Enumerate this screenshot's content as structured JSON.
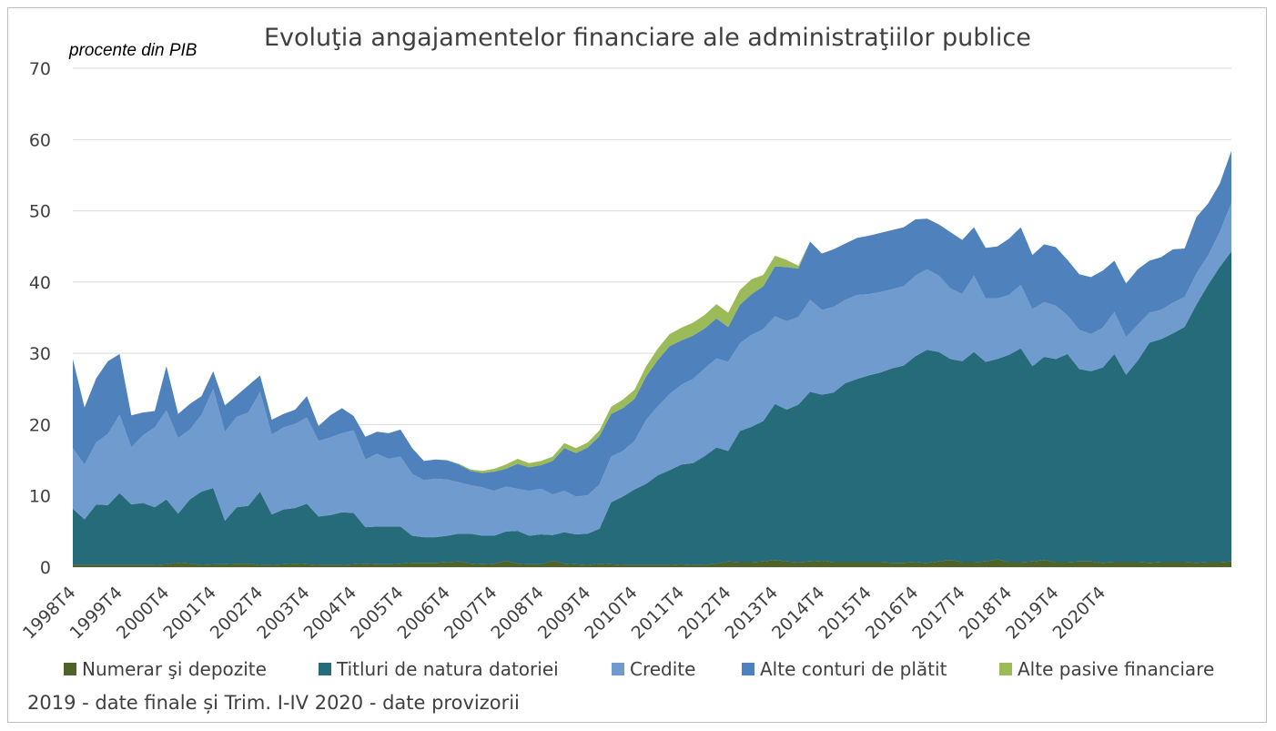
{
  "title": "Evoluţia angajamentelor financiare ale administraţiilor publice",
  "unit_label": "procente din PIB",
  "note": "2019 - date finale și Trim. I-IV 2020 - date provizorii",
  "colors": {
    "numerar": "#4f6228",
    "titluri": "#256b7a",
    "credite": "#6f9bcf",
    "alte_conturi": "#4f81bd",
    "alte_pasive": "#9bbb59",
    "grid": "#d9d9d9",
    "text": "#404040"
  },
  "chart_data": {
    "type": "area",
    "stacked": true,
    "title": "Evoluţia angajamentelor financiare ale administraţiilor publice",
    "ylabel": "procente din PIB",
    "ylim": [
      0,
      70
    ],
    "yticks": [
      0,
      10,
      20,
      30,
      40,
      50,
      60,
      70
    ],
    "grid": true,
    "legend_position": "bottom",
    "x_start": "1998T4",
    "x_end": "2020T4",
    "x_tick_labels": [
      "1998T4",
      "1999T4",
      "2000T4",
      "2001T4",
      "2002T4",
      "2003T4",
      "2004T4",
      "2005T4",
      "2006T4",
      "2007T4",
      "2008T4",
      "2009T4",
      "2010T4",
      "2011T4",
      "2012T4",
      "2013T4",
      "2014T4",
      "2015T4",
      "2016T4",
      "2017T4",
      "2018T4",
      "2019T4",
      "2020T4"
    ],
    "series": [
      {
        "name": "Numerar şi depozite",
        "values": [
          0.3,
          0.3,
          0.3,
          0.3,
          0.3,
          0.3,
          0.3,
          0.3,
          0.4,
          0.6,
          0.5,
          0.3,
          0.4,
          0.4,
          0.5,
          0.5,
          0.3,
          0.3,
          0.4,
          0.5,
          0.4,
          0.3,
          0.3,
          0.3,
          0.4,
          0.5,
          0.4,
          0.4,
          0.5,
          0.6,
          0.6,
          0.6,
          0.7,
          0.8,
          0.5,
          0.4,
          0.5,
          0.9,
          0.5,
          0.4,
          0.4,
          0.9,
          0.5,
          0.4,
          0.3,
          0.5,
          0.4,
          0.3,
          0.3,
          0.3,
          0.3,
          0.3,
          0.4,
          0.3,
          0.3,
          0.5,
          0.8,
          0.7,
          0.7,
          0.8,
          1.0,
          0.8,
          0.7,
          0.8,
          0.9,
          0.7,
          0.7,
          0.7,
          0.7,
          0.7,
          0.6,
          0.6,
          0.7,
          0.6,
          0.8,
          1.0,
          0.7,
          0.7,
          0.8,
          1.1,
          0.7,
          0.7,
          0.8,
          1.0,
          0.7,
          0.7,
          0.8,
          0.8,
          0.6,
          0.7,
          0.7,
          0.7,
          0.6,
          0.7,
          0.7,
          0.7,
          0.6,
          0.7,
          0.7,
          0.8
        ]
      },
      {
        "name": "Titluri de natura datoriei",
        "values": [
          7.9,
          6.4,
          8.5,
          8.4,
          10.1,
          8.5,
          8.7,
          8.1,
          9.1,
          6.9,
          9.0,
          10.3,
          10.7,
          6.1,
          7.9,
          8.1,
          10.3,
          7.1,
          7.7,
          7.8,
          8.5,
          6.8,
          7.0,
          7.4,
          7.2,
          5.1,
          5.3,
          5.3,
          5.2,
          3.8,
          3.6,
          3.6,
          3.7,
          3.9,
          4.2,
          4.0,
          3.9,
          4.1,
          4.6,
          4.0,
          4.2,
          3.6,
          4.4,
          4.2,
          4.4,
          4.9,
          8.7,
          9.6,
          10.6,
          11.4,
          12.6,
          13.3,
          14.0,
          14.3,
          15.3,
          16.3,
          15.5,
          18.4,
          19.0,
          19.7,
          21.9,
          21.3,
          22.1,
          23.8,
          23.3,
          23.8,
          25.1,
          25.7,
          26.2,
          26.6,
          27.3,
          27.7,
          28.9,
          29.9,
          29.4,
          28.2,
          28.2,
          29.5,
          28.0,
          28.1,
          29.1,
          30.0,
          27.4,
          28.5,
          28.5,
          29.2,
          27.0,
          26.7,
          27.4,
          29.2,
          26.3,
          28.3,
          30.9,
          31.3,
          32.1,
          33.0,
          36.2,
          38.9,
          41.4,
          43.5
        ]
      },
      {
        "name": "Credite",
        "values": [
          8.5,
          7.7,
          8.7,
          10.0,
          11.0,
          8.0,
          9.5,
          11.2,
          12.5,
          10.6,
          9.8,
          10.8,
          13.9,
          12.5,
          12.7,
          13.1,
          14.0,
          11.2,
          11.5,
          11.8,
          12.1,
          10.6,
          10.9,
          11.1,
          11.6,
          9.5,
          10.2,
          9.5,
          9.8,
          8.7,
          8.0,
          8.2,
          7.9,
          7.2,
          6.8,
          6.8,
          6.3,
          6.3,
          5.9,
          6.3,
          6.4,
          5.7,
          5.8,
          5.3,
          5.4,
          6.2,
          6.4,
          6.4,
          6.8,
          9.0,
          9.7,
          10.7,
          11.2,
          11.8,
          12.3,
          12.5,
          12.5,
          12.3,
          12.9,
          12.9,
          12.3,
          12.4,
          12.3,
          12.9,
          11.9,
          12.0,
          11.7,
          11.8,
          11.4,
          11.3,
          11.1,
          11.1,
          11.3,
          11.3,
          10.7,
          9.9,
          9.4,
          10.7,
          8.9,
          8.5,
          8.4,
          8.9,
          8.0,
          7.7,
          7.5,
          5.4,
          5.5,
          5.2,
          5.6,
          5.9,
          5.3,
          5.0,
          4.2,
          4.1,
          4.3,
          4.2,
          4.4,
          4.1,
          4.9,
          6.8
        ]
      },
      {
        "name": "Alte conturi de plătit",
        "values": [
          12.5,
          8.0,
          9.0,
          10.2,
          8.5,
          4.5,
          3.2,
          2.3,
          6.2,
          3.4,
          3.6,
          2.6,
          2.5,
          3.7,
          3.0,
          3.8,
          2.3,
          2.1,
          1.9,
          2.0,
          3.0,
          2.1,
          3.1,
          3.5,
          2.0,
          3.2,
          3.1,
          3.6,
          3.8,
          3.6,
          2.7,
          2.7,
          2.7,
          2.5,
          2.0,
          2.0,
          2.7,
          2.5,
          3.5,
          3.3,
          3.3,
          4.7,
          6.0,
          6.1,
          6.7,
          6.8,
          6.0,
          6.0,
          5.9,
          6.1,
          6.5,
          6.7,
          6.2,
          6.1,
          5.6,
          5.6,
          4.9,
          5.4,
          5.7,
          6.0,
          7.0,
          7.6,
          6.8,
          8.2,
          7.9,
          8.1,
          7.9,
          8.0,
          8.2,
          8.3,
          8.3,
          8.3,
          7.9,
          7.1,
          7.2,
          7.9,
          7.6,
          6.8,
          7.1,
          7.3,
          7.9,
          8.1,
          7.6,
          8.1,
          8.2,
          7.8,
          7.8,
          8.0,
          8.0,
          7.2,
          7.5,
          7.8,
          7.3,
          7.4,
          7.5,
          6.8,
          7.9,
          7.3,
          6.8,
          7.3
        ]
      },
      {
        "name": "Alte pasive financiare",
        "values": [
          0,
          0,
          0,
          0,
          0,
          0,
          0,
          0,
          0,
          0,
          0,
          0,
          0,
          0,
          0,
          0,
          0,
          0,
          0,
          0,
          0,
          0,
          0,
          0,
          0,
          0,
          0,
          0,
          0,
          0,
          0,
          0,
          0,
          0.1,
          0.2,
          0.3,
          0.4,
          0.6,
          0.7,
          0.6,
          0.6,
          0.6,
          0.7,
          0.7,
          0.7,
          0.8,
          1.0,
          1.2,
          1.3,
          1.4,
          1.6,
          1.7,
          1.8,
          1.8,
          1.9,
          2.0,
          2.0,
          2.1,
          2.1,
          1.6,
          1.5,
          1.0,
          0.4,
          0,
          0,
          0,
          0,
          0,
          0,
          0,
          0,
          0,
          0,
          0,
          0,
          0,
          0,
          0,
          0,
          0,
          0,
          0,
          0,
          0,
          0,
          0,
          0,
          0,
          0,
          0,
          0,
          0,
          0,
          0,
          0,
          0,
          0,
          0,
          0,
          0
        ]
      }
    ]
  }
}
